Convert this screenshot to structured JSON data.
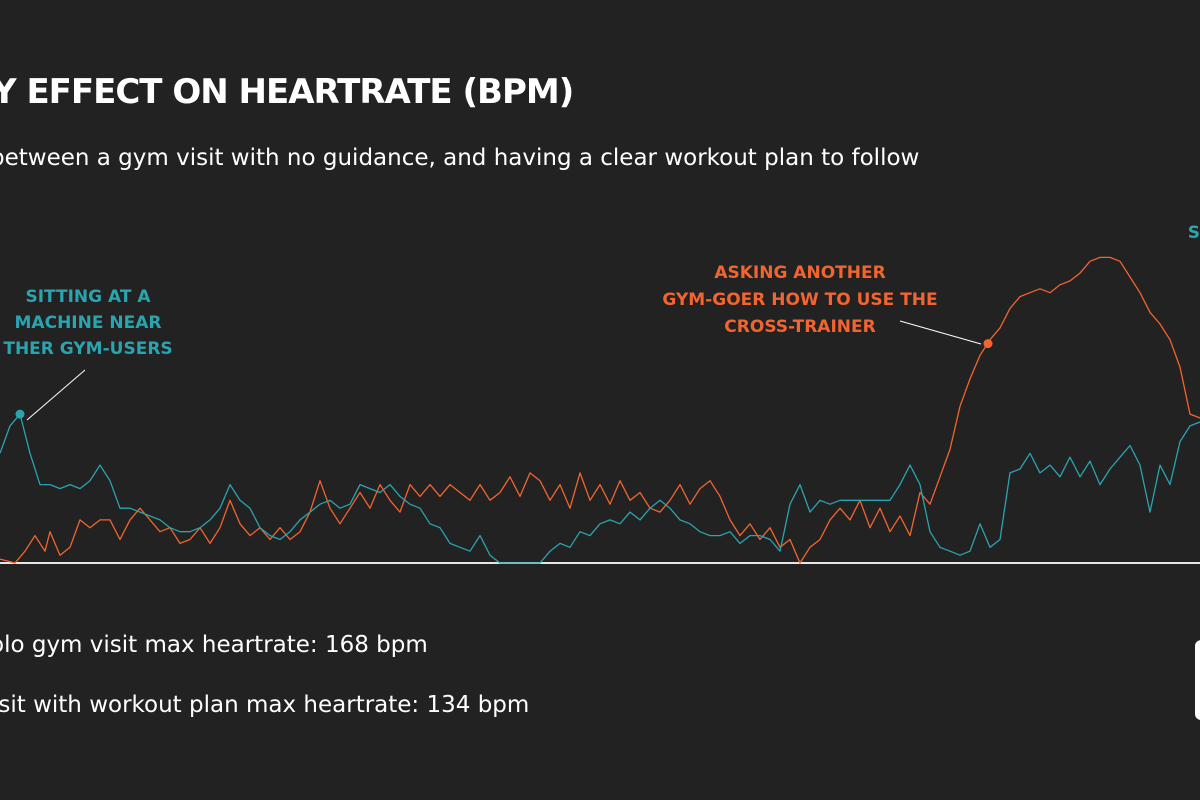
{
  "colors": {
    "background": "#222222",
    "text": "#ffffff",
    "solo_series": "#f26430",
    "plan_series": "#2aa4ae",
    "baseline": "#e6e6e6",
    "leader": "#ffffff"
  },
  "header": {
    "title": "Y EFFECT ON HEARTRATE (BPM)",
    "subtitle": "between a gym visit with no guidance, and having a clear workout plan to follow"
  },
  "stats": {
    "solo": "olo gym visit max heartrate: 168 bpm",
    "plan": "isit with workout plan max heartrate: 134 bpm"
  },
  "chart_data": {
    "type": "line",
    "title": "Y EFFECT ON HEARTRATE (BPM)",
    "subtitle": "between a gym visit with no guidance, and having a clear workout plan to follow",
    "xlabel": "",
    "ylabel": "",
    "ylim": [
      90,
      175
    ],
    "xlim": [
      0,
      120
    ],
    "grid": false,
    "legend": "none",
    "series": [
      {
        "color": "#f26430",
        "values": [
          [
            0,
            91
          ],
          [
            1.5,
            90
          ],
          [
            2.5,
            93
          ],
          [
            3.5,
            97
          ],
          [
            4.5,
            93
          ],
          [
            5,
            98
          ],
          [
            6,
            92
          ],
          [
            7,
            94
          ],
          [
            8,
            101
          ],
          [
            9,
            99
          ],
          [
            10,
            101
          ],
          [
            11,
            101
          ],
          [
            12,
            96
          ],
          [
            13,
            101
          ],
          [
            14,
            104
          ],
          [
            15,
            101
          ],
          [
            16,
            98
          ],
          [
            17,
            99
          ],
          [
            18,
            95
          ],
          [
            19,
            96
          ],
          [
            20,
            99
          ],
          [
            21,
            95
          ],
          [
            22,
            99
          ],
          [
            23,
            106
          ],
          [
            24,
            100
          ],
          [
            25,
            97
          ],
          [
            26,
            99
          ],
          [
            27,
            96
          ],
          [
            28,
            99
          ],
          [
            29,
            96
          ],
          [
            30,
            98
          ],
          [
            31,
            103
          ],
          [
            32,
            111
          ],
          [
            33,
            104
          ],
          [
            34,
            100
          ],
          [
            35,
            104
          ],
          [
            36,
            108
          ],
          [
            37,
            104
          ],
          [
            38,
            110
          ],
          [
            39,
            106
          ],
          [
            40,
            103
          ],
          [
            41,
            110
          ],
          [
            42,
            107
          ],
          [
            43,
            110
          ],
          [
            44,
            107
          ],
          [
            45,
            110
          ],
          [
            46,
            108
          ],
          [
            47,
            106
          ],
          [
            48,
            110
          ],
          [
            49,
            106
          ],
          [
            50,
            108
          ],
          [
            51,
            112
          ],
          [
            52,
            107
          ],
          [
            53,
            113
          ],
          [
            54,
            111
          ],
          [
            55,
            106
          ],
          [
            56,
            110
          ],
          [
            57,
            104
          ],
          [
            58,
            113
          ],
          [
            59,
            106
          ],
          [
            60,
            110
          ],
          [
            61,
            105
          ],
          [
            62,
            111
          ],
          [
            63,
            106
          ],
          [
            64,
            108
          ],
          [
            65,
            104
          ],
          [
            66,
            103
          ],
          [
            67,
            106
          ],
          [
            68,
            110
          ],
          [
            69,
            105
          ],
          [
            70,
            109
          ],
          [
            71,
            111
          ],
          [
            72,
            107
          ],
          [
            73,
            101
          ],
          [
            74,
            97
          ],
          [
            75,
            100
          ],
          [
            76,
            96
          ],
          [
            77,
            99
          ],
          [
            78,
            94
          ],
          [
            79,
            96
          ],
          [
            80,
            90
          ],
          [
            81,
            94
          ],
          [
            82,
            96
          ],
          [
            83,
            101
          ],
          [
            84,
            104
          ],
          [
            85,
            101
          ],
          [
            86,
            106
          ],
          [
            87,
            99
          ],
          [
            88,
            104
          ],
          [
            89,
            98
          ],
          [
            90,
            102
          ],
          [
            91,
            97
          ],
          [
            92,
            108
          ],
          [
            93,
            105
          ],
          [
            94,
            112
          ],
          [
            95,
            119
          ],
          [
            96,
            130
          ],
          [
            97,
            137
          ],
          [
            98,
            143
          ],
          [
            99,
            147
          ],
          [
            100,
            150
          ],
          [
            101,
            155
          ],
          [
            102,
            158
          ],
          [
            103,
            159
          ],
          [
            104,
            160
          ],
          [
            105,
            159
          ],
          [
            106,
            161
          ],
          [
            107,
            162
          ],
          [
            108,
            164
          ],
          [
            109,
            167
          ],
          [
            110,
            168
          ],
          [
            111,
            168
          ],
          [
            112,
            167
          ],
          [
            113,
            163
          ],
          [
            114,
            159
          ],
          [
            115,
            154
          ],
          [
            116,
            151
          ],
          [
            117,
            147
          ],
          [
            118,
            140
          ],
          [
            119,
            128
          ],
          [
            120,
            127
          ]
        ]
      },
      {
        "color": "#2aa4ae",
        "values": [
          [
            0,
            118
          ],
          [
            1,
            125
          ],
          [
            2,
            128
          ],
          [
            3,
            118
          ],
          [
            4,
            110
          ],
          [
            5,
            110
          ],
          [
            6,
            109
          ],
          [
            7,
            110
          ],
          [
            8,
            109
          ],
          [
            9,
            111
          ],
          [
            10,
            115
          ],
          [
            11,
            111
          ],
          [
            12,
            104
          ],
          [
            13,
            104
          ],
          [
            14,
            103
          ],
          [
            15,
            102
          ],
          [
            16,
            101
          ],
          [
            17,
            99
          ],
          [
            18,
            98
          ],
          [
            19,
            98
          ],
          [
            20,
            99
          ],
          [
            21,
            101
          ],
          [
            22,
            104
          ],
          [
            23,
            110
          ],
          [
            24,
            106
          ],
          [
            25,
            104
          ],
          [
            26,
            99
          ],
          [
            27,
            97
          ],
          [
            28,
            96
          ],
          [
            29,
            98
          ],
          [
            30,
            101
          ],
          [
            31,
            103
          ],
          [
            32,
            105
          ],
          [
            33,
            106
          ],
          [
            34,
            104
          ],
          [
            35,
            105
          ],
          [
            36,
            110
          ],
          [
            37,
            109
          ],
          [
            38,
            108
          ],
          [
            39,
            110
          ],
          [
            40,
            107
          ],
          [
            41,
            105
          ],
          [
            42,
            104
          ],
          [
            43,
            100
          ],
          [
            44,
            99
          ],
          [
            45,
            95
          ],
          [
            46,
            94
          ],
          [
            47,
            93
          ],
          [
            48,
            97
          ],
          [
            49,
            92
          ],
          [
            50,
            90
          ],
          [
            51,
            90
          ],
          [
            52,
            90
          ],
          [
            53,
            90
          ],
          [
            54,
            90
          ],
          [
            55,
            93
          ],
          [
            56,
            95
          ],
          [
            57,
            94
          ],
          [
            58,
            98
          ],
          [
            59,
            97
          ],
          [
            60,
            100
          ],
          [
            61,
            101
          ],
          [
            62,
            100
          ],
          [
            63,
            103
          ],
          [
            64,
            101
          ],
          [
            65,
            104
          ],
          [
            66,
            106
          ],
          [
            67,
            104
          ],
          [
            68,
            101
          ],
          [
            69,
            100
          ],
          [
            70,
            98
          ],
          [
            71,
            97
          ],
          [
            72,
            97
          ],
          [
            73,
            98
          ],
          [
            74,
            95
          ],
          [
            75,
            97
          ],
          [
            76,
            97
          ],
          [
            77,
            96
          ],
          [
            78,
            93
          ],
          [
            79,
            105
          ],
          [
            80,
            110
          ],
          [
            81,
            103
          ],
          [
            82,
            106
          ],
          [
            83,
            105
          ],
          [
            84,
            106
          ],
          [
            85,
            106
          ],
          [
            86,
            106
          ],
          [
            87,
            106
          ],
          [
            88,
            106
          ],
          [
            89,
            106
          ],
          [
            90,
            110
          ],
          [
            91,
            115
          ],
          [
            92,
            110
          ],
          [
            93,
            98
          ],
          [
            94,
            94
          ],
          [
            95,
            93
          ],
          [
            96,
            92
          ],
          [
            97,
            93
          ],
          [
            98,
            100
          ],
          [
            99,
            94
          ],
          [
            100,
            96
          ],
          [
            101,
            113
          ],
          [
            102,
            114
          ],
          [
            103,
            118
          ],
          [
            104,
            113
          ],
          [
            105,
            115
          ],
          [
            106,
            112
          ],
          [
            107,
            117
          ],
          [
            108,
            112
          ],
          [
            109,
            116
          ],
          [
            110,
            110
          ],
          [
            111,
            114
          ],
          [
            112,
            117
          ],
          [
            113,
            120
          ],
          [
            114,
            115
          ],
          [
            115,
            103
          ],
          [
            116,
            115
          ],
          [
            117,
            110
          ],
          [
            118,
            121
          ],
          [
            119,
            125
          ],
          [
            120,
            126
          ]
        ]
      }
    ],
    "annotations": [
      {
        "series": 1,
        "x": 2,
        "y": 128,
        "lines": [
          "SITTING AT A",
          "MACHINE NEAR",
          "THER GYM-USERS"
        ]
      },
      {
        "series": 0,
        "x": 98.8,
        "y": 146,
        "lines": [
          "ASKING ANOTHER",
          "GYM-GOER HOW TO USE THE",
          "CROSS-TRAINER"
        ]
      },
      {
        "series": 1,
        "x": 121,
        "y": 160,
        "lines": [
          "S"
        ]
      }
    ]
  }
}
